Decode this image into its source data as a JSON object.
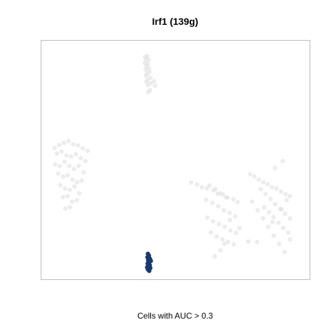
{
  "chart_data": {
    "type": "scatter",
    "title": "Irf1 (139g)",
    "xlabel": "Cells with AUC > 0.3",
    "ylabel": "",
    "grid": false,
    "xlim": [
      0,
      100
    ],
    "ylim": [
      0,
      100
    ],
    "colors": {
      "inactive": "#dcdcdc",
      "active": "#1a3a6e",
      "frame": "#bbbbbb"
    },
    "series": [
      {
        "role": "inactive",
        "points": [
          [
            38.4,
            95.1
          ],
          [
            39.3,
            95.4
          ],
          [
            38.8,
            94.0
          ],
          [
            39.8,
            93.7
          ],
          [
            38.3,
            92.5
          ],
          [
            39.5,
            92.0
          ],
          [
            38.9,
            91.0
          ],
          [
            39.9,
            90.1
          ],
          [
            38.6,
            89.4
          ],
          [
            40.1,
            88.5
          ],
          [
            39.2,
            87.7
          ],
          [
            38.7,
            86.9
          ],
          [
            40.4,
            86.0
          ],
          [
            39.3,
            85.1
          ],
          [
            38.9,
            84.2
          ],
          [
            40.6,
            83.6
          ],
          [
            39.5,
            82.7
          ],
          [
            41.9,
            84.5
          ],
          [
            42.3,
            82.4
          ],
          [
            40.3,
            80.5
          ],
          [
            39.6,
            79.6
          ],
          [
            3.5,
            55.3
          ],
          [
            5.3,
            56.6
          ],
          [
            7.1,
            57.5
          ],
          [
            8.9,
            58.3
          ],
          [
            10.7,
            56.8
          ],
          [
            12.5,
            56.4
          ],
          [
            14.4,
            55.1
          ],
          [
            16.2,
            54.0
          ],
          [
            4.4,
            52.8
          ],
          [
            6.2,
            53.7
          ],
          [
            8.1,
            52.0
          ],
          [
            9.9,
            51.5
          ],
          [
            11.7,
            52.5
          ],
          [
            13.6,
            50.8
          ],
          [
            15.4,
            49.6
          ],
          [
            3.7,
            48.1
          ],
          [
            5.5,
            47.4
          ],
          [
            7.4,
            49.2
          ],
          [
            9.2,
            47.4
          ],
          [
            11.0,
            46.1
          ],
          [
            12.8,
            47.5
          ],
          [
            14.7,
            44.6
          ],
          [
            4.9,
            44.0
          ],
          [
            6.8,
            42.7
          ],
          [
            8.6,
            43.3
          ],
          [
            10.4,
            41.4
          ],
          [
            12.2,
            40.3
          ],
          [
            14.0,
            41.0
          ],
          [
            5.7,
            39.0
          ],
          [
            7.5,
            37.6
          ],
          [
            9.3,
            36.9
          ],
          [
            11.2,
            38.4
          ],
          [
            13.0,
            35.4
          ],
          [
            6.7,
            33.8
          ],
          [
            8.5,
            34.2
          ],
          [
            10.3,
            31.8
          ],
          [
            12.1,
            32.4
          ],
          [
            7.6,
            28.8
          ],
          [
            9.4,
            29.4
          ],
          [
            56.1,
            40.1
          ],
          [
            58.4,
            39.3
          ],
          [
            60.3,
            38.1
          ],
          [
            62.2,
            37.6
          ],
          [
            64.7,
            36.7
          ],
          [
            66.4,
            35.3
          ],
          [
            68.5,
            34.9
          ],
          [
            70.3,
            33.6
          ],
          [
            72.4,
            32.8
          ],
          [
            74.1,
            31.6
          ],
          [
            63.2,
            38.9
          ],
          [
            65.5,
            37.3
          ],
          [
            67.4,
            35.4
          ],
          [
            69.6,
            33.6
          ],
          [
            62.0,
            32.6
          ],
          [
            64.4,
            31.3
          ],
          [
            66.6,
            29.8
          ],
          [
            68.8,
            28.0
          ],
          [
            71.0,
            26.9
          ],
          [
            73.2,
            25.4
          ],
          [
            62.4,
            24.8
          ],
          [
            64.6,
            23.2
          ],
          [
            66.9,
            22.0
          ],
          [
            69.1,
            20.8
          ],
          [
            71.3,
            19.2
          ],
          [
            73.5,
            18.2
          ],
          [
            63.8,
            18.4
          ],
          [
            66.0,
            16.5
          ],
          [
            68.2,
            15.3
          ],
          [
            70.4,
            14.2
          ],
          [
            72.6,
            13.1
          ],
          [
            67.5,
            10.6
          ],
          [
            69.0,
            13.4
          ],
          [
            65.3,
            7.9
          ],
          [
            71.1,
            23.8
          ],
          [
            74.8,
            20.2
          ],
          [
            78.9,
            43.8
          ],
          [
            80.6,
            42.9
          ],
          [
            82.3,
            41.4
          ],
          [
            84.0,
            40.3
          ],
          [
            85.7,
            39.4
          ],
          [
            87.4,
            38.1
          ],
          [
            89.1,
            37.5
          ],
          [
            90.8,
            36.2
          ],
          [
            92.5,
            35.1
          ],
          [
            94.2,
            34.2
          ],
          [
            83.0,
            37.3
          ],
          [
            84.9,
            35.1
          ],
          [
            86.8,
            33.0
          ],
          [
            88.6,
            30.7
          ],
          [
            90.5,
            28.6
          ],
          [
            92.4,
            26.5
          ],
          [
            94.3,
            24.4
          ],
          [
            84.3,
            29.2
          ],
          [
            86.2,
            27.2
          ],
          [
            88.0,
            25.0
          ],
          [
            89.9,
            22.6
          ],
          [
            91.7,
            20.4
          ],
          [
            93.6,
            18.3
          ],
          [
            79.7,
            31.8
          ],
          [
            81.8,
            28.0
          ],
          [
            83.9,
            24.5
          ],
          [
            85.9,
            20.8
          ],
          [
            88.0,
            17.0
          ],
          [
            90.1,
            13.4
          ],
          [
            92.2,
            9.8
          ],
          [
            94.3,
            15.3
          ],
          [
            78.2,
            14.4
          ],
          [
            81.6,
            14.2
          ],
          [
            87.5,
            22.9
          ],
          [
            91.0,
            28.5
          ],
          [
            93.0,
            32.5
          ],
          [
            88.5,
            46.5
          ],
          [
            91.5,
            49.5
          ]
        ]
      },
      {
        "role": "active",
        "points": [
          [
            39.5,
            9.0
          ],
          [
            39.9,
            8.2
          ],
          [
            39.3,
            7.5
          ],
          [
            40.3,
            6.8
          ],
          [
            39.6,
            6.1
          ],
          [
            40.0,
            5.4
          ],
          [
            39.4,
            4.7
          ],
          [
            40.2,
            4.0
          ],
          [
            39.7,
            3.4
          ],
          [
            40.4,
            2.8
          ],
          [
            39.5,
            2.2
          ],
          [
            40.0,
            1.6
          ],
          [
            40.6,
            5.9
          ],
          [
            39.2,
            3.1
          ]
        ]
      }
    ]
  }
}
